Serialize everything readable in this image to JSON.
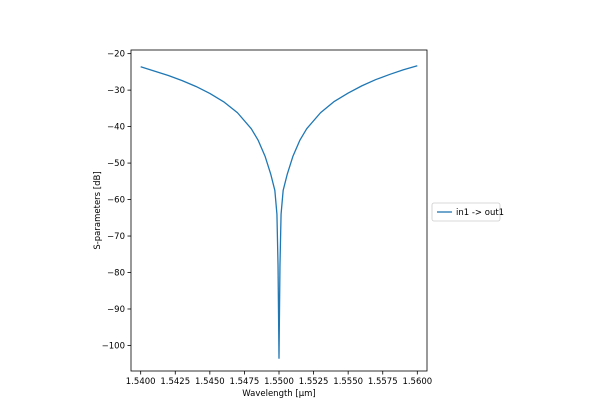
{
  "chart_data": {
    "type": "line",
    "title": "",
    "xlabel": "Wavelength [μm]",
    "ylabel": "S-parameters [dB]",
    "xlim": [
      1.5393,
      1.5607
    ],
    "ylim": [
      -107.0,
      -19.0
    ],
    "xticks": [
      1.54,
      1.5425,
      1.545,
      1.5475,
      1.55,
      1.5525,
      1.555,
      1.5575,
      1.56
    ],
    "xtick_labels": [
      "1.5400",
      "1.5425",
      "1.5450",
      "1.5475",
      "1.5500",
      "1.5525",
      "1.5550",
      "1.5575",
      "1.5600"
    ],
    "yticks": [
      -20,
      -30,
      -40,
      -50,
      -60,
      -70,
      -80,
      -90,
      -100
    ],
    "ytick_labels": [
      "−20",
      "−30",
      "−40",
      "−50",
      "−60",
      "−70",
      "−80",
      "−90",
      "−100"
    ],
    "grid": false,
    "legend_position": "outside-right",
    "series": [
      {
        "name": "in1 -> out1",
        "color": "#1f77b4",
        "x": [
          1.54,
          1.541,
          1.542,
          1.543,
          1.544,
          1.545,
          1.546,
          1.547,
          1.548,
          1.5485,
          1.549,
          1.5494,
          1.5497,
          1.54985,
          1.54993,
          1.55,
          1.55007,
          1.55015,
          1.5503,
          1.5506,
          1.551,
          1.5515,
          1.552,
          1.553,
          1.554,
          1.555,
          1.556,
          1.557,
          1.558,
          1.559,
          1.56
        ],
        "y": [
          -23.6,
          -24.8,
          -26.0,
          -27.4,
          -29.0,
          -30.9,
          -33.2,
          -36.2,
          -40.6,
          -43.8,
          -48.2,
          -53.0,
          -57.5,
          -64.0,
          -78.0,
          -103.5,
          -78.0,
          -64.0,
          -57.5,
          -53.0,
          -48.2,
          -43.8,
          -40.6,
          -36.2,
          -33.1,
          -30.8,
          -28.8,
          -27.1,
          -25.7,
          -24.4,
          -23.3
        ]
      }
    ]
  }
}
